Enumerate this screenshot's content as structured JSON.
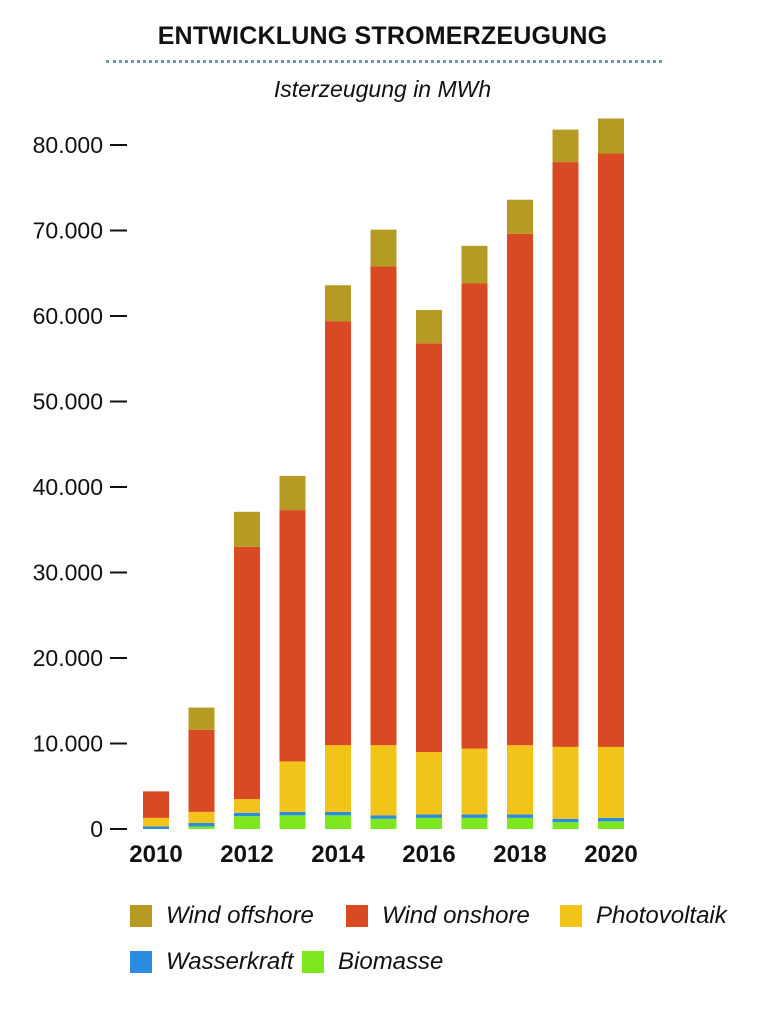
{
  "header": {
    "title": "ENTWICKLUNG STROMERZEUGUNG",
    "subtitle": "Isterzeugung in MWh"
  },
  "colors": {
    "wind_offshore": "#b59b23",
    "wind_onshore": "#d94a24",
    "photovoltaik": "#f2c319",
    "wasserkraft": "#2b8be0",
    "biomasse": "#7de820"
  },
  "legend": {
    "wind_offshore": "Wind offshore",
    "wind_onshore": "Wind onshore",
    "photovoltaik": "Photovoltaik",
    "wasserkraft": "Wasserkraft",
    "biomasse": "Biomasse"
  },
  "chart_data": {
    "type": "bar",
    "stacked": true,
    "title": "ENTWICKLUNG STROMERZEUGUNG",
    "subtitle": "Isterzeugung in MWh",
    "x": [
      2010,
      2011,
      2012,
      2013,
      2014,
      2015,
      2016,
      2017,
      2018,
      2019,
      2020
    ],
    "x_tick_labels": [
      "2010",
      "",
      "2012",
      "",
      "2014",
      "",
      "2016",
      "",
      "2018",
      "",
      "2020"
    ],
    "ylim": [
      0,
      83000
    ],
    "y_ticks": [
      0,
      10000,
      20000,
      30000,
      40000,
      50000,
      60000,
      70000,
      80000
    ],
    "y_tick_labels": [
      "0",
      "10.000",
      "20.000",
      "30.000",
      "40.000",
      "50.000",
      "60.000",
      "70.000",
      "80.000"
    ],
    "grid": false,
    "legend_position": "bottom",
    "series": [
      {
        "name": "Biomasse",
        "key": "biomasse",
        "values": [
          0,
          300,
          1500,
          1600,
          1600,
          1200,
          1300,
          1300,
          1300,
          800,
          900
        ]
      },
      {
        "name": "Wasserkraft",
        "key": "wasserkraft",
        "values": [
          300,
          400,
          400,
          400,
          400,
          400,
          400,
          400,
          400,
          400,
          400
        ]
      },
      {
        "name": "Photovoltaik",
        "key": "photovoltaik",
        "values": [
          1000,
          1300,
          1600,
          5900,
          7800,
          8200,
          7300,
          7700,
          8100,
          8400,
          8300
        ]
      },
      {
        "name": "Wind onshore",
        "key": "wind_onshore",
        "values": [
          3100,
          9600,
          29500,
          29400,
          49600,
          56000,
          47800,
          54400,
          59800,
          68400,
          69400
        ]
      },
      {
        "name": "Wind offshore",
        "key": "wind_offshore",
        "values": [
          0,
          2600,
          4100,
          4000,
          4200,
          4300,
          3900,
          4400,
          4000,
          3800,
          4100
        ]
      }
    ]
  }
}
